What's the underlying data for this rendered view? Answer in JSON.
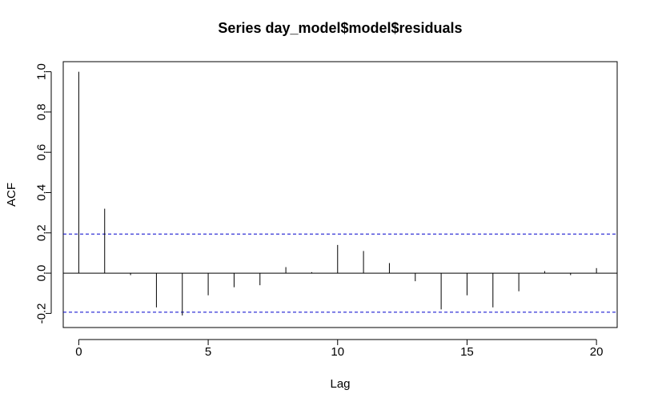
{
  "chart_data": {
    "type": "bar",
    "title": "Series  day_model$model$residuals",
    "xlabel": "Lag",
    "ylabel": "ACF",
    "xlim": [
      -0.6,
      20.8
    ],
    "ylim": [
      -0.27,
      1.05
    ],
    "x_ticks": [
      0,
      5,
      10,
      15,
      20
    ],
    "x_tick_labels": [
      "0",
      "5",
      "10",
      "15",
      "20"
    ],
    "y_ticks": [
      -0.2,
      0.0,
      0.2,
      0.4,
      0.6,
      0.8,
      1.0
    ],
    "y_tick_labels": [
      "-0.2",
      "0.0",
      "0.2",
      "0.4",
      "0.6",
      "0.8",
      "1.0"
    ],
    "lags": [
      0,
      1,
      2,
      3,
      4,
      5,
      6,
      7,
      8,
      9,
      10,
      11,
      12,
      13,
      14,
      15,
      16,
      17,
      18,
      19,
      20
    ],
    "values": [
      1.0,
      0.32,
      -0.01,
      -0.17,
      -0.21,
      -0.11,
      -0.07,
      -0.06,
      0.03,
      0.005,
      0.14,
      0.11,
      0.05,
      -0.04,
      -0.18,
      -0.11,
      -0.17,
      -0.09,
      0.01,
      -0.01,
      0.025
    ],
    "confidence_bound": 0.194,
    "colors": {
      "bars": "#000000",
      "confidence_lines": "#0000cc",
      "zero_line": "#000000",
      "frame": "#000000"
    },
    "grid": false
  }
}
